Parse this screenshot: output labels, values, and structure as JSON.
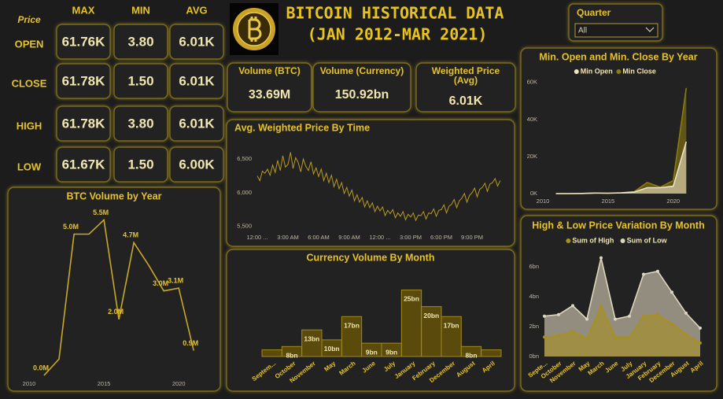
{
  "header": {
    "title": "BITCOIN HISTORICAL DATA",
    "subtitle": "(JAN 2012-MAR 2021)"
  },
  "slicer": {
    "label": "Quarter",
    "value": "All"
  },
  "price_table": {
    "corner": "Price",
    "columns": [
      "MAX",
      "MIN",
      "AVG"
    ],
    "rows": [
      {
        "label": "OPEN",
        "cells": [
          "61.76K",
          "3.80",
          "6.01K"
        ]
      },
      {
        "label": "CLOSE",
        "cells": [
          "61.78K",
          "1.50",
          "6.01K"
        ]
      },
      {
        "label": "HIGH",
        "cells": [
          "61.78K",
          "3.80",
          "6.01K"
        ]
      },
      {
        "label": "LOW",
        "cells": [
          "61.67K",
          "1.50",
          "6.00K"
        ]
      }
    ]
  },
  "cards": [
    {
      "label": "Volume (BTC)",
      "value": "33.69M"
    },
    {
      "label": "Volume (Currency)",
      "value": "150.92bn"
    },
    {
      "label": "Weighted Price (Avg)",
      "value": "6.01K"
    }
  ],
  "chart_data": [
    {
      "type": "line",
      "title": "BTC Volume by Year",
      "x": [
        2011,
        2012,
        2013,
        2014,
        2015,
        2016,
        2017,
        2018,
        2019,
        2020,
        2021
      ],
      "values": [
        0.03,
        0.6,
        5.0,
        5.0,
        5.5,
        2.0,
        4.7,
        3.9,
        3.0,
        3.1,
        0.9
      ],
      "value_labels": [
        "0.0M",
        null,
        "5.0M",
        null,
        "5.5M",
        "2.0M",
        "4.7M",
        null,
        "3.0M",
        "3.1M",
        "0.9M"
      ],
      "color": "#c8a82a",
      "xlim": [
        2010,
        2021.2
      ],
      "xticks": [
        2010,
        2015,
        2020
      ],
      "ylim": [
        0,
        5.9
      ]
    },
    {
      "type": "line",
      "title": "Avg. Weighted Price By Time",
      "x": [
        0,
        15,
        30,
        45,
        60,
        75,
        90,
        105,
        120,
        135,
        150,
        165,
        180,
        195,
        210,
        225,
        240,
        255,
        270,
        285,
        300,
        315,
        330,
        345,
        360,
        375,
        390,
        405,
        420,
        435,
        450,
        465,
        480,
        495,
        510,
        525,
        540,
        555,
        570,
        585,
        600,
        615,
        630,
        645,
        660,
        675,
        690,
        705,
        720,
        735,
        750,
        765,
        780,
        795,
        810,
        825,
        840,
        855,
        870,
        885,
        900,
        915,
        930,
        945,
        960,
        975,
        990,
        1005,
        1020,
        1035,
        1050,
        1065,
        1080,
        1095,
        1110,
        1125,
        1140,
        1155,
        1170,
        1185,
        1200,
        1215,
        1230,
        1245,
        1260,
        1275,
        1290,
        1305,
        1320,
        1335,
        1350,
        1365,
        1380,
        1395,
        1410,
        1425
      ],
      "values": [
        6250,
        6180,
        6320,
        6290,
        6350,
        6260,
        6410,
        6300,
        6480,
        6330,
        6550,
        6380,
        6420,
        6600,
        6360,
        6520,
        6450,
        6310,
        6500,
        6390,
        6330,
        6460,
        6280,
        6370,
        6240,
        6350,
        6180,
        6290,
        6150,
        6260,
        6090,
        6200,
        6060,
        6150,
        5990,
        6080,
        5950,
        6040,
        5880,
        5970,
        5860,
        5930,
        5790,
        5880,
        5780,
        5850,
        5720,
        5800,
        5730,
        5790,
        5660,
        5740,
        5690,
        5750,
        5630,
        5700,
        5650,
        5720,
        5600,
        5680,
        5640,
        5700,
        5590,
        5670,
        5660,
        5720,
        5610,
        5700,
        5690,
        5760,
        5650,
        5740,
        5750,
        5820,
        5700,
        5800,
        5830,
        5900,
        5780,
        5880,
        5920,
        5990,
        5860,
        5960,
        6000,
        6070,
        5940,
        6050,
        6080,
        6140,
        6020,
        6130,
        6150,
        6210,
        6100,
        6180
      ],
      "color": "#b89a22",
      "xlim": [
        0,
        1440
      ],
      "xticks": [
        {
          "value": 0,
          "label": "12:00 ..."
        },
        {
          "value": 180,
          "label": "3:00 AM"
        },
        {
          "value": 360,
          "label": "6:00 AM"
        },
        {
          "value": 540,
          "label": "9:00 AM"
        },
        {
          "value": 720,
          "label": "12:00 ..."
        },
        {
          "value": 900,
          "label": "3:00 PM"
        },
        {
          "value": 1080,
          "label": "6:00 PM"
        },
        {
          "value": 1260,
          "label": "9:00 PM"
        }
      ],
      "ylim": [
        5450,
        6700
      ],
      "yticks": [
        {
          "value": 5500,
          "label": "5,500"
        },
        {
          "value": 6000,
          "label": "6,000"
        },
        {
          "value": 6500,
          "label": "6,500"
        }
      ]
    },
    {
      "type": "step_area",
      "title": "Currency Volume By Month",
      "categories": [
        "Septem...",
        "October",
        "November",
        "May",
        "March",
        "June",
        "July",
        "January",
        "February",
        "December",
        "August",
        "April"
      ],
      "values": [
        7,
        8,
        13,
        10,
        17,
        9,
        9,
        25,
        20,
        17,
        8,
        7
      ],
      "value_labels": [
        null,
        "8bn",
        "13bn",
        "10bn",
        "17bn",
        "9bn",
        "9bn",
        "25bn",
        "20bn",
        "17bn",
        "8bn",
        null
      ],
      "color": "#5a4b0c",
      "ylim": [
        5,
        27
      ]
    },
    {
      "type": "area",
      "title": "Min. Open and Min. Close By Year",
      "x": [
        2011,
        2012,
        2013,
        2014,
        2015,
        2016,
        2017,
        2018,
        2019,
        2020,
        2021
      ],
      "series": [
        {
          "name": "Min Open",
          "color": "#ece4c4",
          "values": [
            0,
            0,
            0.1,
            0.3,
            0.2,
            0.4,
            0.8,
            3.2,
            3.2,
            4,
            28
          ]
        },
        {
          "name": "Min Close",
          "color": "#8c7a12",
          "values": [
            0,
            0,
            0.1,
            0.3,
            0.2,
            0.4,
            1,
            6,
            3.5,
            7,
            57
          ]
        }
      ],
      "legend": "top",
      "xlim": [
        2010,
        2021.1
      ],
      "xticks": [
        2010,
        2015,
        2020
      ],
      "ylim": [
        0,
        62
      ],
      "yticks": [
        {
          "value": 0,
          "label": "0K"
        },
        {
          "value": 20,
          "label": "20K"
        },
        {
          "value": 40,
          "label": "40K"
        },
        {
          "value": 60,
          "label": "60K"
        }
      ]
    },
    {
      "type": "area",
      "title": "High & Low Price Variation By Month",
      "categories": [
        "Septe...",
        "October",
        "November",
        "May",
        "March",
        "June",
        "July",
        "January",
        "February",
        "December",
        "August",
        "April"
      ],
      "series": [
        {
          "name": "Sum of High",
          "color": "#a89020",
          "values": [
            1.3,
            1.4,
            1.7,
            1.2,
            3.4,
            1.3,
            1.3,
            2.7,
            2.8,
            2.2,
            1.5,
            0.9
          ]
        },
        {
          "name": "Sum of Low",
          "color": "#ddd6bc",
          "values": [
            2.7,
            2.8,
            3.4,
            2.5,
            6.6,
            2.5,
            2.7,
            5.5,
            5.7,
            4.3,
            2.9,
            1.9
          ]
        }
      ],
      "legend": "top",
      "markers": true,
      "ylim": [
        0,
        7
      ],
      "yticks": [
        {
          "value": 0,
          "label": "0bn"
        },
        {
          "value": 2,
          "label": "2bn"
        },
        {
          "value": 4,
          "label": "4bn"
        },
        {
          "value": 6,
          "label": "6bn"
        }
      ]
    }
  ]
}
